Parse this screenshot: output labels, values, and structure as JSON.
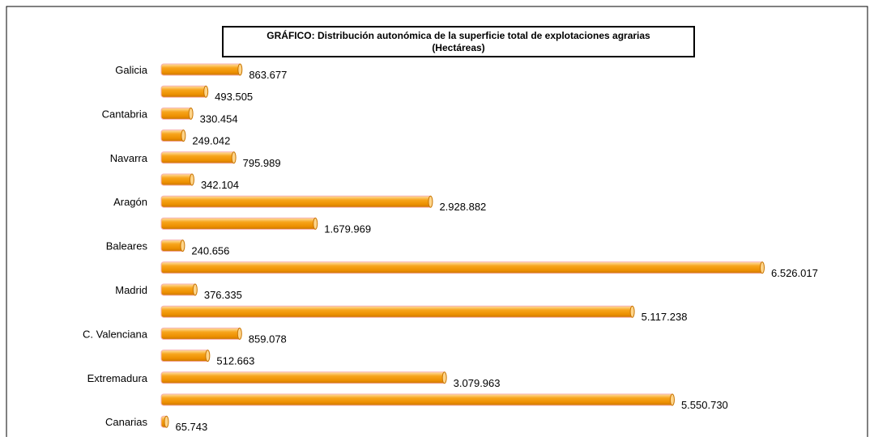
{
  "chart_data": {
    "type": "bar",
    "orientation": "horizontal",
    "title": "GRÁFICO: Distribución autonómica de la superficie total de explotaciones agrarias",
    "subtitle": "(Hectáreas)",
    "xlabel": "",
    "ylabel": "",
    "grid": false,
    "legend": "none",
    "bar_color": "#f29a00",
    "bar_highlight": "#ffd58a",
    "bar_edge": "#f7b0b0",
    "categories": [
      "Galicia",
      "",
      "Cantabria",
      "",
      "Navarra",
      "",
      "Aragón",
      "",
      "Baleares",
      "",
      "Madrid",
      "",
      "C. Valenciana",
      "",
      "Extremadura",
      "",
      "Canarias"
    ],
    "values": [
      863677,
      493505,
      330454,
      249042,
      795989,
      342104,
      2928882,
      1679969,
      240656,
      6526017,
      376335,
      5117238,
      859078,
      512663,
      3079963,
      5550730,
      65743
    ],
    "value_labels": [
      "863.677",
      "493.505",
      "330.454",
      "249.042",
      "795.989",
      "342.104",
      "2.928.882",
      "1.679.969",
      "240.656",
      "6.526.017",
      "376.335",
      "5.117.238",
      "859.078",
      "512.663",
      "3.079.963",
      "5.550.730",
      "65.743"
    ]
  }
}
